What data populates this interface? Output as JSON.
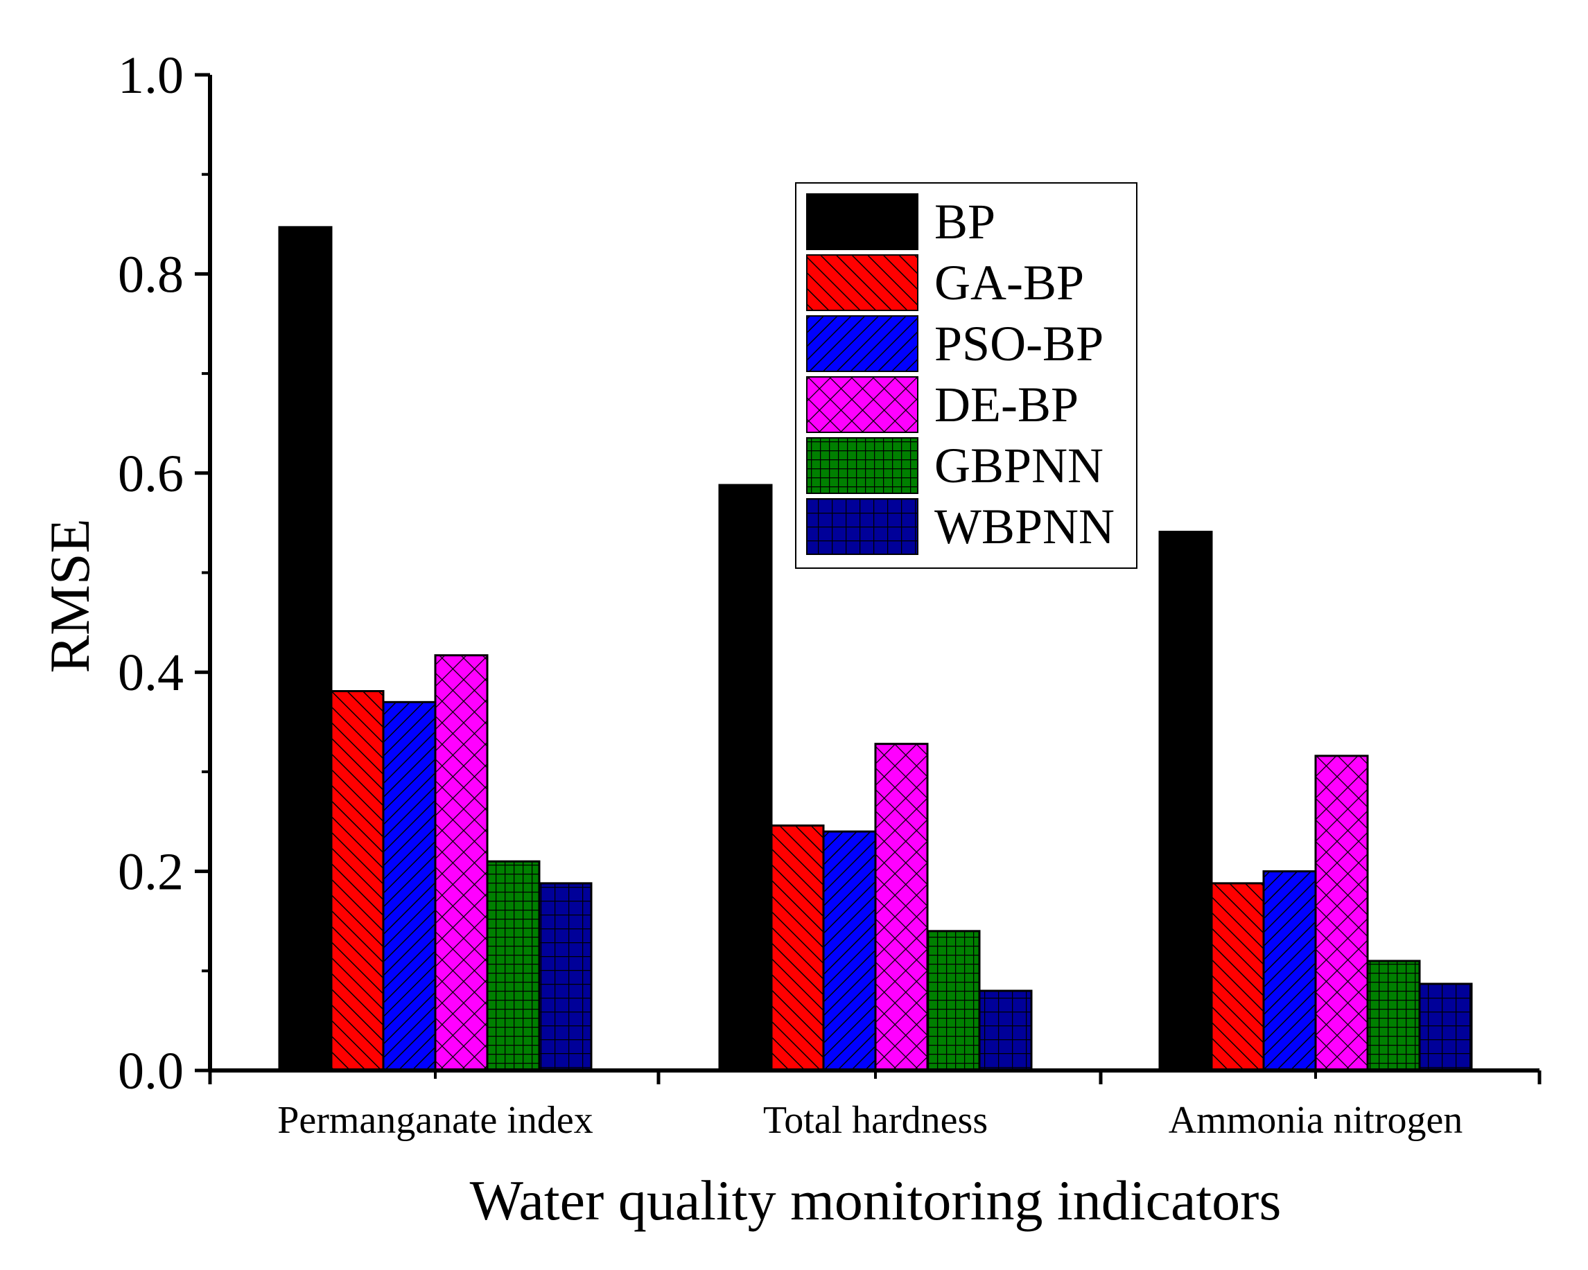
{
  "chart_data": {
    "type": "bar",
    "title": "",
    "xlabel": "Water quality monitoring indicators",
    "ylabel": "RMSE",
    "ylim": [
      0,
      1.0
    ],
    "yticks": [
      "0.0",
      "0.2",
      "0.4",
      "0.6",
      "0.8",
      "1.0"
    ],
    "ytick_values": [
      0,
      0.2,
      0.4,
      0.6,
      0.8,
      1.0
    ],
    "categories": [
      "Permanganate index",
      "Total hardness",
      "Ammonia nitrogen"
    ],
    "legend_position": "top-right",
    "series": [
      {
        "name": "BP",
        "values": [
          0.847,
          0.588,
          0.541
        ],
        "color": "#000000",
        "pattern": "solid"
      },
      {
        "name": "GA-BP",
        "values": [
          0.381,
          0.246,
          0.188
        ],
        "color": "#ff0000",
        "pattern": "diag-right"
      },
      {
        "name": "PSO-BP",
        "values": [
          0.37,
          0.24,
          0.2
        ],
        "color": "#0000ff",
        "pattern": "diag-left"
      },
      {
        "name": "DE-BP",
        "values": [
          0.417,
          0.328,
          0.316
        ],
        "color": "#ff00ff",
        "pattern": "crosshatch"
      },
      {
        "name": "GBPNN",
        "values": [
          0.21,
          0.14,
          0.11
        ],
        "color": "#008000",
        "pattern": "fine-grid"
      },
      {
        "name": "WBPNN",
        "values": [
          0.188,
          0.08,
          0.087
        ],
        "color": "#000099",
        "pattern": "grid"
      }
    ]
  }
}
